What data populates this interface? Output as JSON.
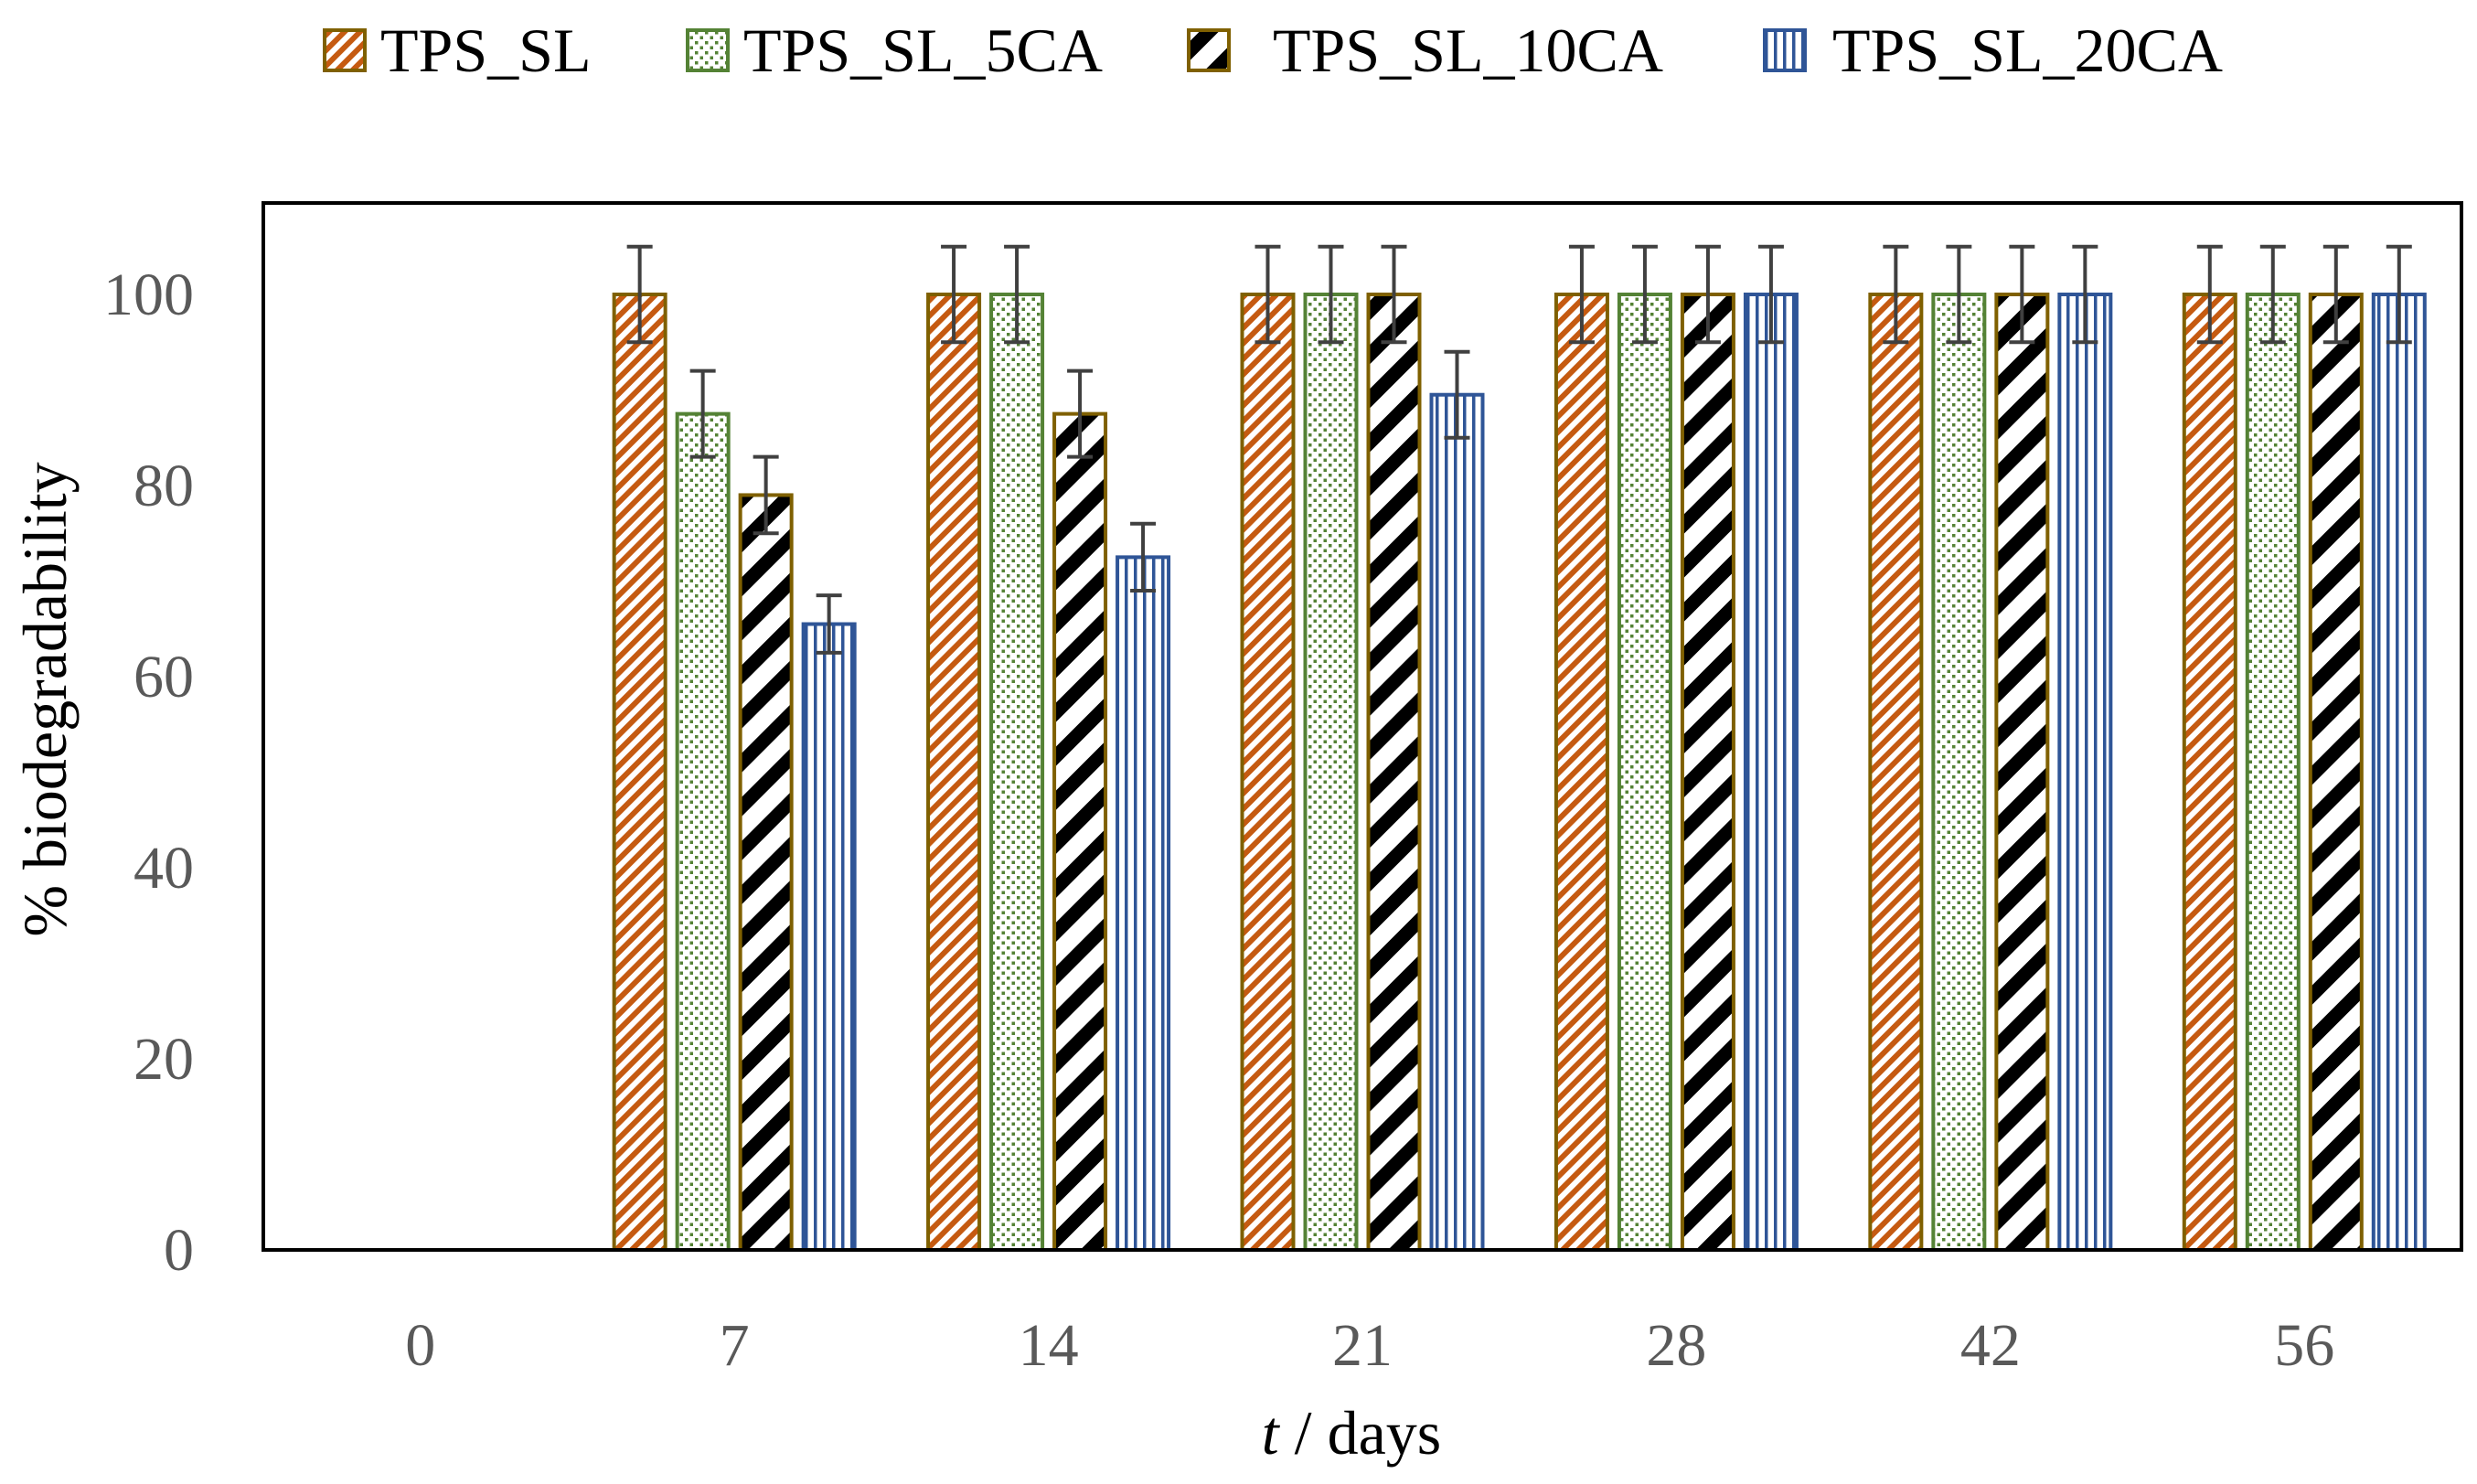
{
  "chart_data": {
    "type": "bar",
    "title": "",
    "xlabel_italic": "t",
    "xlabel_rest": " / days",
    "ylabel": "% biodegradability",
    "categories": [
      "0",
      "7",
      "14",
      "21",
      "28",
      "42",
      "56"
    ],
    "ylim": [
      0,
      110
    ],
    "yticks": [
      0,
      20,
      40,
      60,
      80,
      100
    ],
    "yticks_labels": [
      "0",
      "20",
      "40",
      "60",
      "80",
      "100"
    ],
    "legend_position": "top",
    "grid": false,
    "series": [
      {
        "name": "TPS_SL",
        "pattern": "diagonal-fine",
        "color": "#c55a11",
        "border": "#7f6000",
        "values": [
          0,
          100,
          100,
          100,
          100,
          100,
          100
        ],
        "errors": [
          0,
          5,
          5,
          5,
          5,
          5,
          5
        ]
      },
      {
        "name": "TPS_SL_5CA",
        "pattern": "dots",
        "color": "#548235",
        "border": "#548235",
        "values": [
          0,
          87.5,
          100,
          100,
          100,
          100,
          100
        ],
        "errors": [
          0,
          4.5,
          5,
          5,
          5,
          5,
          5
        ]
      },
      {
        "name": "TPS_SL_10CA",
        "pattern": "diagonal-wide",
        "color": "#000000",
        "border": "#7f6000",
        "values": [
          0,
          79,
          87.5,
          100,
          100,
          100,
          100
        ],
        "errors": [
          0,
          4,
          4.5,
          5,
          5,
          5,
          5
        ]
      },
      {
        "name": "TPS_SL_20CA",
        "pattern": "vertical",
        "color": "#2f5597",
        "border": "#2f5597",
        "values": [
          0,
          65.5,
          72.5,
          89.5,
          100,
          100,
          100
        ],
        "errors": [
          0,
          3,
          3.5,
          4.5,
          5,
          5,
          5
        ]
      }
    ]
  }
}
